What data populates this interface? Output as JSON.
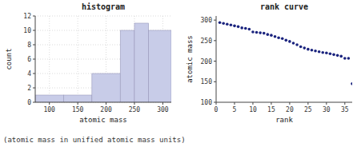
{
  "chart_data": [
    {
      "type": "histogram",
      "title": "histogram",
      "x_label": "atomic mass",
      "y_label": "count",
      "bins": [
        75,
        125,
        175,
        225,
        250,
        275,
        315
      ],
      "values": [
        1,
        1,
        4,
        10,
        11,
        10
      ],
      "color": "#c8cce8",
      "xlim": [
        75,
        315
      ],
      "ylim": [
        0,
        12
      ],
      "xticks": [
        100,
        150,
        200,
        250,
        300
      ],
      "yticks": [
        0,
        2,
        4,
        6,
        8,
        10,
        12
      ],
      "grid": true
    },
    {
      "type": "scatter",
      "title": "rank curve",
      "x_label": "rank",
      "y_label": "atomic mass",
      "x": [
        1,
        2,
        3,
        4,
        5,
        6,
        7,
        8,
        9,
        10,
        11,
        12,
        13,
        14,
        15,
        16,
        17,
        18,
        19,
        20,
        21,
        22,
        23,
        24,
        25,
        26,
        27,
        28,
        29,
        30,
        31,
        32,
        33,
        34,
        35,
        36,
        37
      ],
      "values": [
        294,
        292,
        290,
        288,
        286,
        284,
        281,
        280,
        278,
        271,
        270,
        269,
        268,
        265,
        263,
        260,
        257,
        255,
        251,
        248,
        244,
        240,
        235,
        232,
        229,
        227,
        225,
        223,
        221,
        220,
        218,
        216,
        214,
        212,
        207,
        207,
        145
      ],
      "color": "#1a237e",
      "marker": "dot",
      "xlim": [
        0,
        37
      ],
      "ylim": [
        100,
        310
      ],
      "xticks": [
        0,
        5,
        10,
        15,
        20,
        25,
        30,
        35
      ],
      "yticks": [
        100,
        150,
        200,
        250,
        300
      ],
      "grid": false
    }
  ],
  "caption": "(atomic mass in unified atomic mass units)"
}
